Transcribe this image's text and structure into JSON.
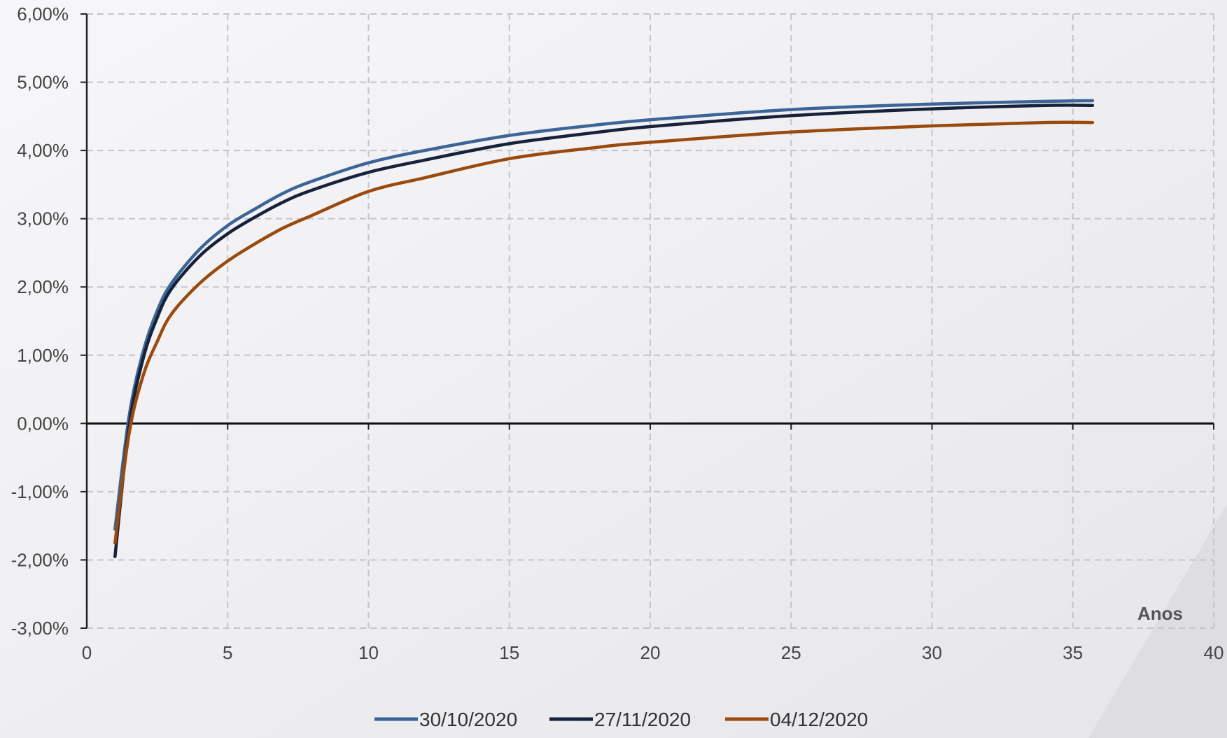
{
  "chart_data": {
    "type": "line",
    "title": "",
    "xlabel": "Anos",
    "ylabel": "",
    "xlim": [
      0,
      40
    ],
    "ylim": [
      -3,
      6
    ],
    "x_ticks": [
      0,
      5,
      10,
      15,
      20,
      25,
      30,
      35,
      40
    ],
    "x_tick_labels": [
      "0",
      "5",
      "10",
      "15",
      "20",
      "25",
      "30",
      "35",
      "40"
    ],
    "y_ticks": [
      -3,
      -2,
      -1,
      0,
      1,
      2,
      3,
      4,
      5,
      6
    ],
    "y_tick_labels": [
      "-3,00%",
      "-2,00%",
      "-1,00%",
      "0,00%",
      "1,00%",
      "2,00%",
      "3,00%",
      "4,00%",
      "5,00%",
      "6,00%"
    ],
    "grid": true,
    "legend_position": "bottom",
    "x": [
      1,
      1.5,
      2,
      2.5,
      3,
      4,
      5,
      6,
      7,
      8,
      10,
      12,
      15,
      18,
      20,
      25,
      30,
      34,
      35.7
    ],
    "series": [
      {
        "name": "30/10/2020",
        "color": "#3c6496",
        "values": [
          -1.55,
          0.1,
          1.05,
          1.65,
          2.05,
          2.55,
          2.9,
          3.15,
          3.38,
          3.55,
          3.82,
          4.0,
          4.22,
          4.37,
          4.45,
          4.6,
          4.68,
          4.72,
          4.73
        ]
      },
      {
        "name": "27/11/2020",
        "color": "#16223a",
        "values": [
          -1.95,
          -0.05,
          0.95,
          1.55,
          1.97,
          2.45,
          2.78,
          3.03,
          3.25,
          3.42,
          3.68,
          3.86,
          4.1,
          4.26,
          4.35,
          4.51,
          4.61,
          4.66,
          4.66
        ]
      },
      {
        "name": "04/12/2020",
        "color": "#9a4a0c",
        "values": [
          -1.75,
          -0.15,
          0.7,
          1.2,
          1.6,
          2.05,
          2.38,
          2.64,
          2.87,
          3.05,
          3.4,
          3.6,
          3.88,
          4.04,
          4.12,
          4.27,
          4.36,
          4.41,
          4.41
        ]
      }
    ]
  }
}
